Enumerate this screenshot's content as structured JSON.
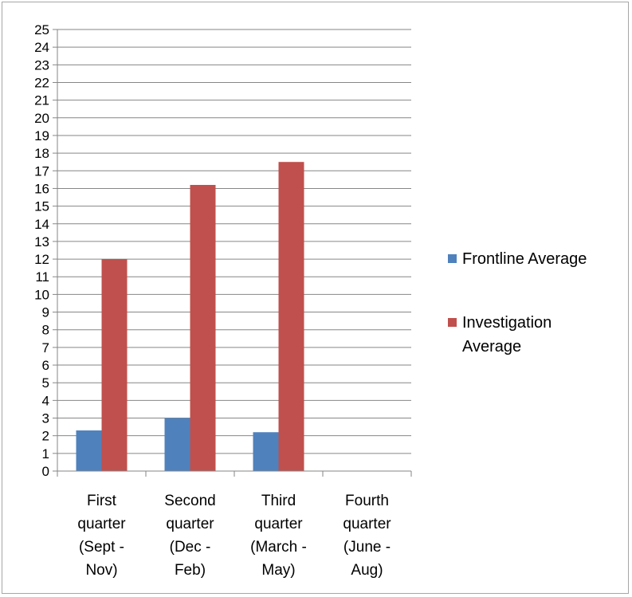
{
  "chart_data": {
    "type": "bar",
    "categories": [
      [
        "First",
        "quarter",
        "(Sept -",
        "Nov)"
      ],
      [
        "Second",
        "quarter",
        "(Dec -",
        "Feb)"
      ],
      [
        "Third",
        "quarter",
        "(March -",
        "May)"
      ],
      [
        "Fourth",
        "quarter",
        "(June -",
        "Aug)"
      ]
    ],
    "series": [
      {
        "name": "Frontline Average",
        "legend_lines": [
          "Frontline Average"
        ],
        "color": "#4f81bd",
        "values": [
          2.3,
          3.0,
          2.2,
          0
        ]
      },
      {
        "name": "Investigation Average",
        "legend_lines": [
          "Investigation",
          "Average"
        ],
        "color": "#c0504d",
        "values": [
          12.0,
          16.2,
          17.5,
          0
        ]
      }
    ],
    "ylim": [
      0,
      25
    ],
    "ytick_step": 1,
    "grid": true,
    "legend_position": "right",
    "title": "",
    "xlabel": "",
    "ylabel": ""
  }
}
